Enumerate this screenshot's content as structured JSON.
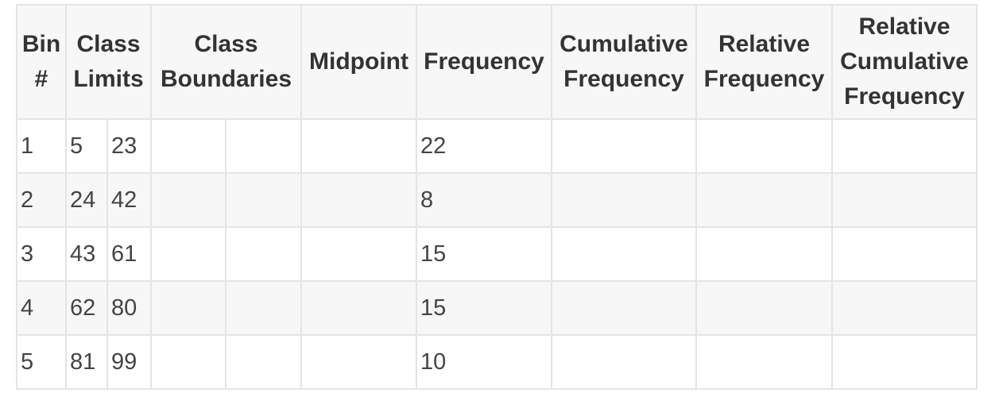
{
  "headers": {
    "bin": "Bin #",
    "class_limits": "Class Limits",
    "class_boundaries": "Class Boundaries",
    "midpoint": "Midpoint",
    "frequency": "Frequency",
    "cumulative_frequency": "Cumulative Frequency",
    "relative_frequency": "Relative Frequency",
    "relative_cumulative_frequency": "Relative Cumulative Frequency"
  },
  "rows": [
    {
      "bin": "1",
      "lower": "5",
      "upper": "23",
      "frequency": "22"
    },
    {
      "bin": "2",
      "lower": "24",
      "upper": "42",
      "frequency": "8"
    },
    {
      "bin": "3",
      "lower": "43",
      "upper": "61",
      "frequency": "15"
    },
    {
      "bin": "4",
      "lower": "62",
      "upper": "80",
      "frequency": "15"
    },
    {
      "bin": "5",
      "lower": "81",
      "upper": "99",
      "frequency": "10"
    }
  ]
}
